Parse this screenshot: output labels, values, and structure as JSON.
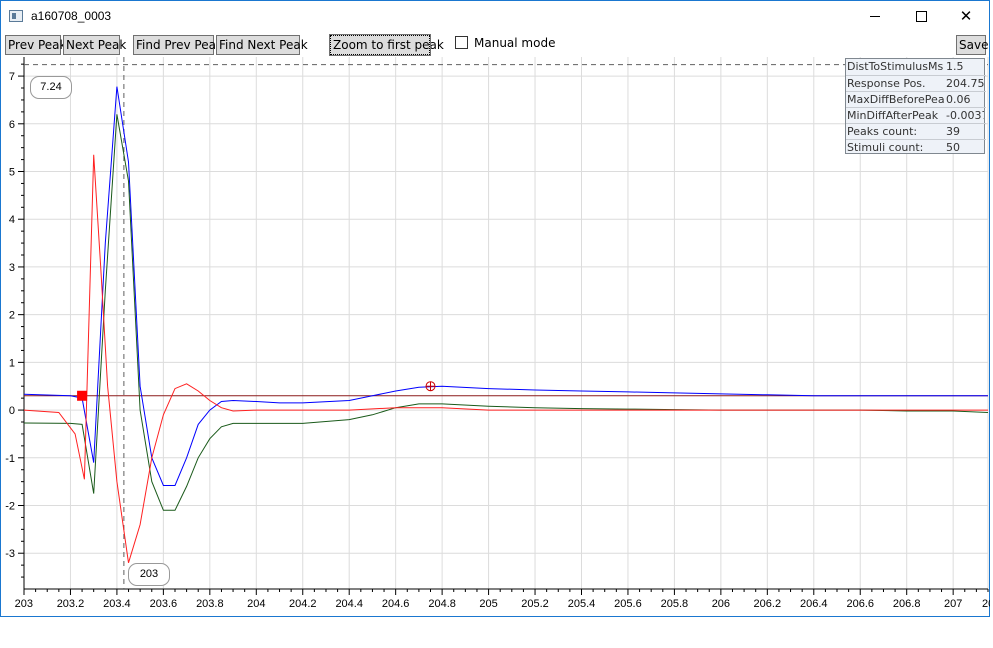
{
  "window": {
    "title": "a160708_0003"
  },
  "toolbar": {
    "prev_peak": "Prev Peak",
    "next_peak": "Next Peak",
    "find_prev_peak": "Find Prev Peak",
    "find_next_peak": "Find Next Peak",
    "zoom_first_peak": "Zoom to first peak",
    "manual_mode": "Manual mode",
    "manual_mode_checked": false,
    "save": "Save"
  },
  "info_panel": [
    {
      "label": "DistToStimulusMs",
      "value": "1.5"
    },
    {
      "label": "Response Pos.",
      "value": "204.75"
    },
    {
      "label": "MaxDiffBeforePeak",
      "value": "0.06"
    },
    {
      "label": "MinDiffAfterPeak",
      "value": "-0.0037"
    },
    {
      "label": "Peaks count:",
      "value": "39"
    },
    {
      "label": "Stimuli count:",
      "value": "50"
    }
  ],
  "annotations": {
    "max_label": "7.24",
    "cursor_label": "203"
  },
  "chart_data": {
    "type": "line",
    "xlim": [
      203.0,
      207.15
    ],
    "ylim": [
      -3.75,
      7.4
    ],
    "x_ticks": [
      "203",
      "203.2",
      "203.4",
      "203.6",
      "203.8",
      "204",
      "204.2",
      "204.4",
      "204.6",
      "204.8",
      "205",
      "205.2",
      "205.4",
      "205.6",
      "205.8",
      "206",
      "206.2",
      "206.4",
      "206.6",
      "206.8",
      "207",
      "207"
    ],
    "x_tick_values": [
      203.0,
      203.2,
      203.4,
      203.6,
      203.8,
      204.0,
      204.2,
      204.4,
      204.6,
      204.8,
      205.0,
      205.2,
      205.4,
      205.6,
      205.8,
      206.0,
      206.2,
      206.4,
      206.6,
      206.8,
      207.0,
      207.15
    ],
    "y_ticks": [
      "7",
      "6",
      "5",
      "4",
      "3",
      "2",
      "1",
      "0",
      "-1",
      "-2",
      "-3"
    ],
    "y_tick_values": [
      7,
      6,
      5,
      4,
      3,
      2,
      1,
      0,
      -1,
      -2,
      -3
    ],
    "grid": true,
    "hlines": [
      {
        "y": 7.24,
        "style": "dashed",
        "color": "#606060"
      },
      {
        "y": 0.3,
        "style": "solid",
        "color": "#8b1a1a"
      }
    ],
    "vline": {
      "x": 203.43,
      "style": "dashed",
      "color": "#606060"
    },
    "markers": [
      {
        "x": 203.25,
        "y": 0.3,
        "shape": "square",
        "color": "#ff0000"
      },
      {
        "x": 204.75,
        "y": 0.5,
        "shape": "crosshair-circle",
        "color": "#cc0000"
      }
    ],
    "series": [
      {
        "color": "#0000ff",
        "x": [
          203.0,
          203.2,
          203.25,
          203.3,
          203.35,
          203.4,
          203.45,
          203.5,
          203.55,
          203.6,
          203.65,
          203.7,
          203.75,
          203.8,
          203.85,
          203.9,
          204.0,
          204.1,
          204.2,
          204.4,
          204.5,
          204.6,
          204.7,
          204.8,
          205.0,
          205.2,
          205.4,
          205.6,
          205.8,
          206.0,
          206.2,
          206.4,
          206.6,
          206.8,
          207.0,
          207.15
        ],
        "y": [
          0.33,
          0.3,
          0.25,
          -1.1,
          3.5,
          6.78,
          5.2,
          0.5,
          -1.0,
          -1.58,
          -1.58,
          -1.0,
          -0.3,
          0.0,
          0.18,
          0.2,
          0.18,
          0.15,
          0.15,
          0.2,
          0.3,
          0.4,
          0.48,
          0.5,
          0.45,
          0.42,
          0.4,
          0.38,
          0.36,
          0.34,
          0.32,
          0.3,
          0.3,
          0.3,
          0.3,
          0.3
        ]
      },
      {
        "color": "#1a5a1a",
        "x": [
          203.0,
          203.2,
          203.25,
          203.3,
          203.35,
          203.4,
          203.45,
          203.5,
          203.55,
          203.6,
          203.65,
          203.7,
          203.75,
          203.8,
          203.85,
          203.9,
          204.0,
          204.1,
          204.2,
          204.4,
          204.5,
          204.6,
          204.7,
          204.8,
          205.0,
          205.2,
          205.4,
          205.6,
          205.8,
          206.0,
          206.2,
          206.4,
          206.6,
          206.8,
          207.0,
          207.15
        ],
        "y": [
          -0.27,
          -0.28,
          -0.3,
          -1.75,
          2.5,
          6.2,
          4.8,
          0.0,
          -1.5,
          -2.1,
          -2.1,
          -1.6,
          -1.0,
          -0.6,
          -0.35,
          -0.28,
          -0.28,
          -0.28,
          -0.28,
          -0.2,
          -0.1,
          0.05,
          0.13,
          0.13,
          0.08,
          0.05,
          0.03,
          0.02,
          0.01,
          0.0,
          0.0,
          0.0,
          0.0,
          -0.02,
          -0.02,
          -0.05
        ]
      },
      {
        "color": "#ff2020",
        "x": [
          203.0,
          203.15,
          203.22,
          203.26,
          203.3,
          203.33,
          203.36,
          203.4,
          203.45,
          203.5,
          203.55,
          203.6,
          203.65,
          203.7,
          203.75,
          203.8,
          203.85,
          203.9,
          204.0,
          204.2,
          204.4,
          204.6,
          204.8,
          205.0,
          205.5,
          206.0,
          206.5,
          207.0,
          207.15
        ],
        "y": [
          0.0,
          -0.05,
          -0.5,
          -1.45,
          5.35,
          3.0,
          0.5,
          -1.5,
          -3.2,
          -2.4,
          -1.0,
          -0.1,
          0.45,
          0.55,
          0.4,
          0.2,
          0.05,
          -0.02,
          0.0,
          0.0,
          0.0,
          0.05,
          0.05,
          0.0,
          0.0,
          0.0,
          0.0,
          0.0,
          0.0
        ]
      }
    ]
  }
}
